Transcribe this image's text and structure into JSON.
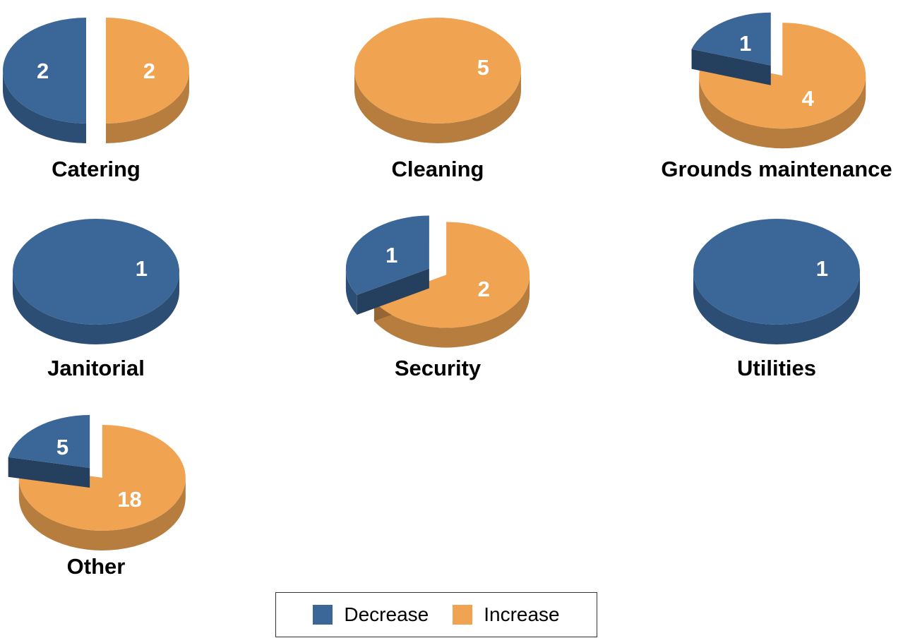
{
  "chart_data": {
    "type": "pie",
    "style": "3d-exploded",
    "colors": {
      "Decrease": "#3b6698",
      "Increase": "#f0a452"
    },
    "legend": {
      "placement": "bottom-center",
      "entries": [
        "Decrease",
        "Increase"
      ]
    },
    "pies": [
      {
        "title": "Catering",
        "values": {
          "Decrease": 2,
          "Increase": 2
        }
      },
      {
        "title": "Cleaning",
        "values": {
          "Decrease": 0,
          "Increase": 5
        }
      },
      {
        "title": "Grounds maintenance",
        "values": {
          "Decrease": 1,
          "Increase": 4
        }
      },
      {
        "title": "Janitorial",
        "values": {
          "Decrease": 1,
          "Increase": 0
        }
      },
      {
        "title": "Security",
        "values": {
          "Decrease": 1,
          "Increase": 2
        }
      },
      {
        "title": "Utilities",
        "values": {
          "Decrease": 1,
          "Increase": 0
        }
      },
      {
        "title": "Other",
        "values": {
          "Decrease": 5,
          "Increase": 18
        }
      }
    ]
  }
}
